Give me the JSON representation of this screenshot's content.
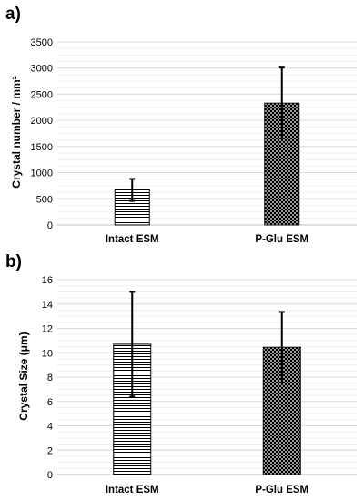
{
  "chart_data": [
    {
      "panel_label": "a)",
      "type": "bar",
      "categories": [
        "Intact ESM",
        "P-Glu ESM"
      ],
      "values": [
        670,
        2330
      ],
      "errors": [
        210,
        680
      ],
      "patterns": [
        "horizontal-lines",
        "crosshatch"
      ],
      "ylabel": "Crystal number / mm²",
      "xlabel": "",
      "ylim": [
        0,
        3500
      ],
      "yticks": [
        0,
        500,
        1000,
        1500,
        2000,
        2500,
        3000,
        3500
      ],
      "grid": true,
      "legend": "none"
    },
    {
      "panel_label": "b)",
      "type": "bar",
      "categories": [
        "Intact ESM",
        "P-Glu ESM"
      ],
      "values": [
        10.7,
        10.45
      ],
      "errors": [
        4.3,
        2.9
      ],
      "patterns": [
        "horizontal-lines",
        "crosshatch"
      ],
      "ylabel": "Crystal Size (μm)",
      "xlabel": "",
      "ylim": [
        0,
        16
      ],
      "yticks": [
        0,
        2,
        4,
        6,
        8,
        10,
        12,
        14,
        16
      ],
      "grid": true,
      "legend": "none"
    }
  ]
}
